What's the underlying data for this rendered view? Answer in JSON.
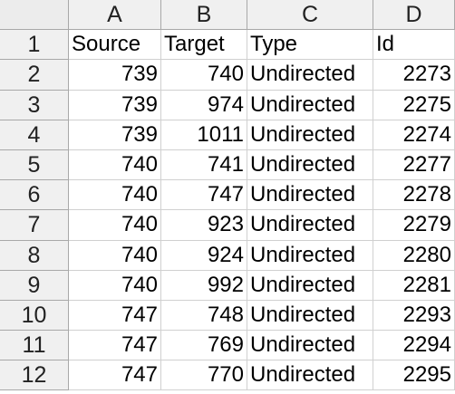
{
  "columns": [
    "A",
    "B",
    "C",
    "D"
  ],
  "header_row": {
    "row_number": "1",
    "cells": [
      "Source",
      "Target",
      "Type",
      "Id"
    ]
  },
  "rows": [
    {
      "n": "2",
      "source": "739",
      "target": "740",
      "type": "Undirected",
      "id": "2273"
    },
    {
      "n": "3",
      "source": "739",
      "target": "974",
      "type": "Undirected",
      "id": "2275"
    },
    {
      "n": "4",
      "source": "739",
      "target": "1011",
      "type": "Undirected",
      "id": "2274"
    },
    {
      "n": "5",
      "source": "740",
      "target": "741",
      "type": "Undirected",
      "id": "2277"
    },
    {
      "n": "6",
      "source": "740",
      "target": "747",
      "type": "Undirected",
      "id": "2278"
    },
    {
      "n": "7",
      "source": "740",
      "target": "923",
      "type": "Undirected",
      "id": "2279"
    },
    {
      "n": "8",
      "source": "740",
      "target": "924",
      "type": "Undirected",
      "id": "2280"
    },
    {
      "n": "9",
      "source": "740",
      "target": "992",
      "type": "Undirected",
      "id": "2281"
    },
    {
      "n": "10",
      "source": "747",
      "target": "748",
      "type": "Undirected",
      "id": "2293"
    },
    {
      "n": "11",
      "source": "747",
      "target": "769",
      "type": "Undirected",
      "id": "2294"
    },
    {
      "n": "12",
      "source": "747",
      "target": "770",
      "type": "Undirected",
      "id": "2295"
    }
  ]
}
